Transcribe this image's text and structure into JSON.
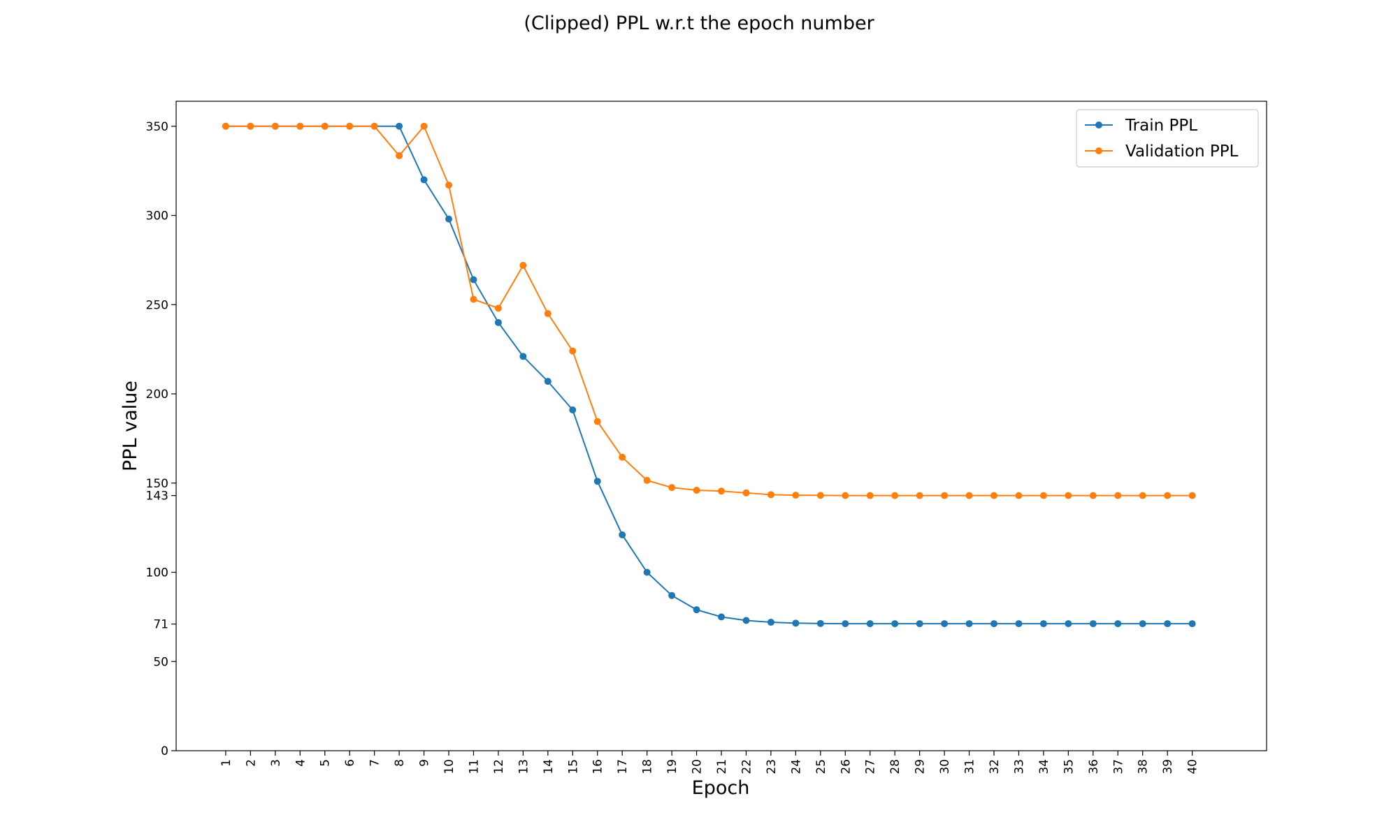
{
  "chart_data": {
    "type": "line",
    "title": "(Clipped) PPL w.r.t the epoch number",
    "xlabel": "Epoch",
    "ylabel": "PPL value",
    "x": [
      1,
      2,
      3,
      4,
      5,
      6,
      7,
      8,
      9,
      10,
      11,
      12,
      13,
      14,
      15,
      16,
      17,
      18,
      19,
      20,
      21,
      22,
      23,
      24,
      25,
      26,
      27,
      28,
      29,
      30,
      31,
      32,
      33,
      34,
      35,
      36,
      37,
      38,
      39,
      40
    ],
    "yticks": [
      0,
      50,
      71,
      100,
      143,
      150,
      200,
      250,
      300,
      350
    ],
    "ylim": [
      0,
      364
    ],
    "xlim": [
      -1,
      43
    ],
    "legend_position": "top-right",
    "grid": false,
    "series": [
      {
        "name": "Train PPL",
        "color": "#1f77b4",
        "values": [
          350,
          350,
          350,
          350,
          350,
          350,
          350,
          350,
          320,
          298,
          264,
          240,
          221,
          207,
          191,
          151,
          121,
          100,
          87,
          79,
          75,
          73,
          72,
          71.5,
          71.3,
          71.2,
          71.2,
          71.2,
          71.2,
          71.2,
          71.2,
          71.2,
          71.2,
          71.2,
          71.2,
          71.2,
          71.2,
          71.2,
          71.2,
          71.2
        ]
      },
      {
        "name": "Validation PPL",
        "color": "#ff7f0e",
        "values": [
          350,
          350,
          350,
          350,
          350,
          350,
          350,
          333.5,
          350,
          317,
          253,
          248,
          272,
          245,
          224,
          184.5,
          164.5,
          151.5,
          147.5,
          146,
          145.5,
          144.5,
          143.5,
          143.2,
          143.1,
          143,
          143,
          143,
          143,
          143,
          143,
          143,
          143,
          143,
          143,
          143,
          143,
          143,
          143,
          143
        ]
      }
    ]
  }
}
